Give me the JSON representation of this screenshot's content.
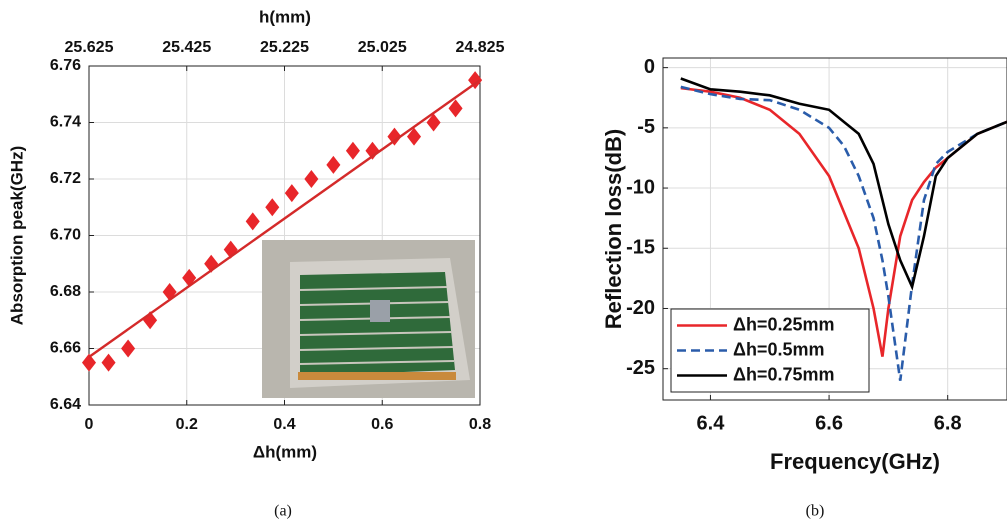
{
  "chart_data": [
    {
      "type": "scatter",
      "caption": "(a)",
      "xlabel": "Δh(mm)",
      "ylabel": "Absorption peak(GHz)",
      "x2label": "h(mm)",
      "xlim": [
        0,
        0.8
      ],
      "xticks": [
        0,
        0.2,
        0.4,
        0.6,
        0.8
      ],
      "x2lim": [
        25.625,
        24.825
      ],
      "x2ticks": [
        25.625,
        25.425,
        25.225,
        25.025,
        24.825
      ],
      "ylim": [
        6.64,
        6.76
      ],
      "yticks": [
        6.64,
        6.66,
        6.68,
        {
          "value": 6.7,
          "label": "6.70"
        },
        6.72,
        6.74,
        6.76
      ],
      "grid": true,
      "series": [
        {
          "color": "#e8262a",
          "marker": "diamond",
          "x": [
            0,
            0.04,
            0.08,
            0.125,
            0.165,
            0.205,
            0.25,
            0.29,
            0.335,
            0.375,
            0.415,
            0.455,
            0.5,
            0.54,
            0.58,
            0.625,
            0.665,
            0.705,
            0.75,
            0.79
          ],
          "values": [
            6.655,
            6.655,
            6.66,
            6.67,
            6.68,
            6.685,
            6.69,
            6.695,
            6.705,
            6.71,
            6.715,
            6.72,
            6.725,
            6.73,
            6.73,
            6.735,
            6.735,
            6.74,
            6.745,
            6.755
          ]
        },
        {
          "color": "#d42a2a",
          "linestyle": "solid",
          "x": [
            0,
            0.8
          ],
          "values": [
            6.657,
            6.755
          ]
        }
      ]
    },
    {
      "type": "line",
      "caption": "(b)",
      "xlabel": "Frequency(GHz)",
      "ylabel": "Reflection loss(dB)",
      "xlim": [
        6.32,
        6.9
      ],
      "xticks": [
        6.4,
        6.6,
        6.8
      ],
      "ylim": [
        -27.6,
        0.8
      ],
      "yticks": [
        0,
        -5,
        -10,
        -15,
        -20,
        -25
      ],
      "grid": true,
      "legend": "lower left",
      "x": [
        6.35,
        6.4,
        6.45,
        6.5,
        6.55,
        6.6,
        6.625,
        6.65,
        6.675,
        6.69,
        6.7,
        6.72,
        6.74,
        6.76,
        6.78,
        6.8,
        6.85,
        6.9
      ],
      "series": [
        {
          "name": "Δh=0.25mm",
          "color": "#e8262a",
          "linestyle": "solid",
          "values": [
            -1.7,
            -2,
            -2.5,
            -3.5,
            -5.5,
            -9,
            -12,
            -15,
            -20,
            -24,
            -20,
            -14,
            -11,
            -9.5,
            -8.3,
            -7.5,
            -5.5,
            -4.5
          ]
        },
        {
          "name": "Δh=0.5mm",
          "color": "#2a5caa",
          "linestyle": "dashed",
          "values": [
            -1.6,
            -2.2,
            -2.6,
            -2.7,
            -3.5,
            -5,
            -6.5,
            -9,
            -12.5,
            -16,
            -19,
            -26,
            -18,
            -11,
            -8,
            -7,
            -5.5,
            -4.5
          ]
        },
        {
          "name": "Δh=0.75mm",
          "color": "#000000",
          "linestyle": "solid",
          "values": [
            -0.9,
            -1.8,
            -2,
            -2.3,
            -3,
            -3.5,
            -4.5,
            -5.5,
            -8,
            -11,
            -13,
            -16,
            -18.2,
            -14,
            -9,
            -7.5,
            -5.5,
            -4.5
          ]
        }
      ]
    }
  ]
}
